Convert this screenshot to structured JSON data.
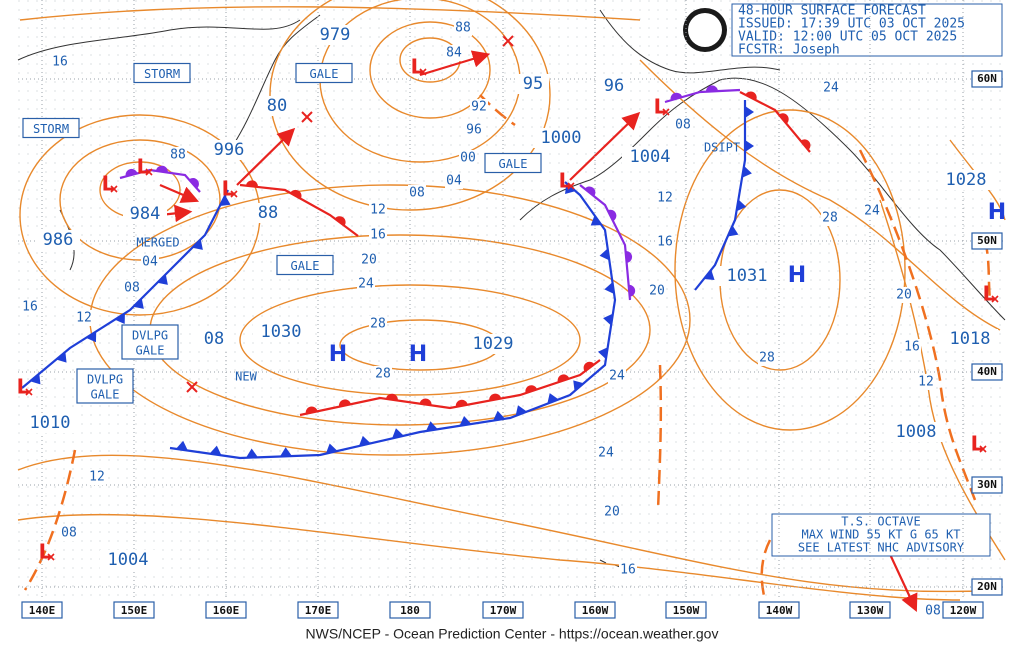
{
  "header": {
    "lines": [
      "48-HOUR SURFACE FORECAST",
      "ISSUED: 17:39 UTC 03 OCT 2025",
      "VALID:  12:00 UTC 05 OCT 2025",
      "FCSTR:  Joseph"
    ]
  },
  "footer": "NWS/NCEP - Ocean Prediction Center - https://ocean.weather.gov",
  "longitude_labels": [
    "140E",
    "150E",
    "160E",
    "170E",
    "180",
    "170W",
    "160W",
    "150W",
    "140W",
    "130W",
    "120W"
  ],
  "latitude_labels": [
    "60N",
    "50N",
    "40N",
    "30N",
    "20N"
  ],
  "center_pressures": [
    "979",
    "95",
    "96",
    "80",
    "996",
    "1000",
    "1004",
    "984",
    "986",
    "88",
    "1028",
    "1031",
    "1030",
    "1029",
    "1018",
    "1010",
    "1008",
    "1004",
    "08"
  ],
  "isobar_labels": [
    "16",
    "88",
    "84",
    "92",
    "96",
    "00",
    "04",
    "08",
    "12",
    "16",
    "20",
    "24",
    "28",
    "28",
    "04",
    "08",
    "12",
    "16",
    "88",
    "12",
    "16",
    "20",
    "24",
    "24",
    "20",
    "16",
    "28",
    "28",
    "24",
    "24",
    "20",
    "16",
    "12",
    "12",
    "08",
    "08",
    "08"
  ],
  "warnings": [
    [
      "STORM"
    ],
    [
      "STORM"
    ],
    [
      "GALE"
    ],
    [
      "GALE"
    ],
    [
      "GALE"
    ],
    [
      "DVLPG",
      "GALE"
    ],
    [
      "DVLPG",
      "GALE"
    ]
  ],
  "annotations": [
    "MERGED",
    "NEW",
    "DSIPT"
  ],
  "high_markers": [
    "H",
    "H",
    "H",
    "H"
  ],
  "low_markers": [
    "L",
    "L",
    "L",
    "L",
    "L",
    "L",
    "L",
    "L",
    "L",
    "L"
  ],
  "advisory": {
    "lines": [
      "T.S. OCTAVE",
      "MAX WIND 55 KT G 65 KT",
      "SEE LATEST NHC ADVISORY"
    ]
  }
}
